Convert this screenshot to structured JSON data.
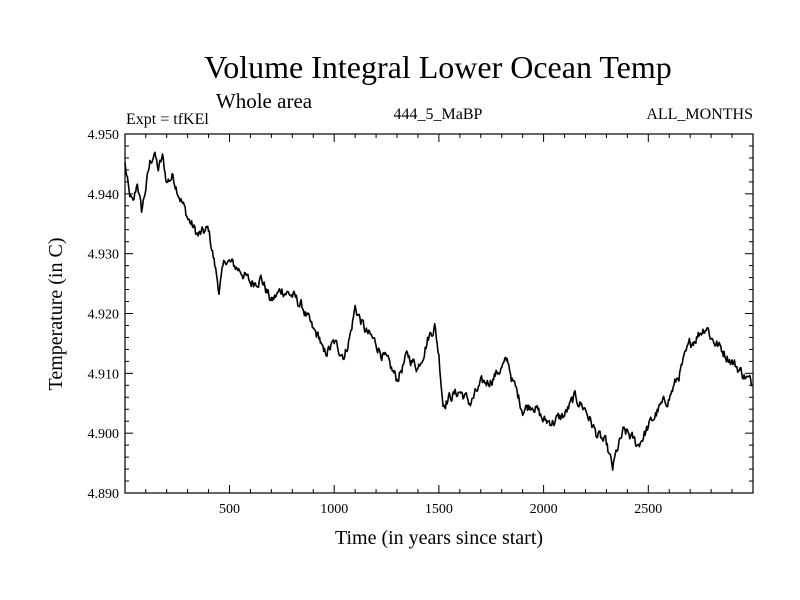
{
  "chart_data": {
    "type": "line",
    "title": "Volume Integral Lower Ocean Temp",
    "subtitle": "Whole area",
    "annotations": {
      "left": "Expt = tfKEl",
      "center": "444_5_MaBP",
      "right": "ALL_MONTHS"
    },
    "xlabel": "Time (in years since start)",
    "ylabel": "Temperature (in C)",
    "xlim": [
      1,
      3000
    ],
    "ylim": [
      4.89,
      4.95
    ],
    "xticks": [
      500,
      1000,
      1500,
      2000,
      2500
    ],
    "yticks": [
      4.89,
      4.9,
      4.91,
      4.92,
      4.93,
      4.94,
      4.95
    ],
    "ytick_labels": [
      "4.890",
      "4.900",
      "4.910",
      "4.920",
      "4.930",
      "4.940",
      "4.950"
    ],
    "grid": false,
    "legend": "none",
    "line_color": "#000000",
    "series": [
      {
        "x": [
          1,
          20,
          40,
          60,
          80,
          100,
          120,
          140,
          160,
          180,
          200,
          230,
          260,
          300,
          350,
          400,
          430,
          450,
          480,
          520,
          560,
          600,
          650,
          700,
          750,
          800,
          850,
          900,
          930,
          950,
          1000,
          1050,
          1080,
          1100,
          1150,
          1200,
          1250,
          1300,
          1350,
          1400,
          1450,
          1480,
          1500,
          1520,
          1550,
          1600,
          1650,
          1700,
          1750,
          1800,
          1830,
          1850,
          1900,
          1950,
          2000,
          2050,
          2100,
          2150,
          2200,
          2250,
          2300,
          2330,
          2350,
          2380,
          2400,
          2450,
          2500,
          2550,
          2600,
          2650,
          2700,
          2750,
          2780,
          2800,
          2850,
          2900,
          2950,
          3000
        ],
        "y": [
          4.945,
          4.94,
          4.938,
          4.942,
          4.937,
          4.941,
          4.945,
          4.947,
          4.944,
          4.946,
          4.942,
          4.943,
          4.94,
          4.936,
          4.933,
          4.934,
          4.928,
          4.924,
          4.929,
          4.928,
          4.927,
          4.925,
          4.926,
          4.922,
          4.924,
          4.923,
          4.921,
          4.917,
          4.916,
          4.913,
          4.915,
          4.913,
          4.917,
          4.921,
          4.917,
          4.915,
          4.912,
          4.909,
          4.913,
          4.911,
          4.916,
          4.918,
          4.913,
          4.905,
          4.906,
          4.907,
          4.905,
          4.908,
          4.909,
          4.911,
          4.912,
          4.909,
          4.904,
          4.905,
          4.902,
          4.902,
          4.903,
          4.906,
          4.904,
          4.9,
          4.898,
          4.894,
          4.897,
          4.9,
          4.9,
          4.898,
          4.901,
          4.904,
          4.906,
          4.91,
          4.915,
          4.917,
          4.918,
          4.916,
          4.914,
          4.912,
          4.91,
          4.908
        ]
      }
    ]
  }
}
